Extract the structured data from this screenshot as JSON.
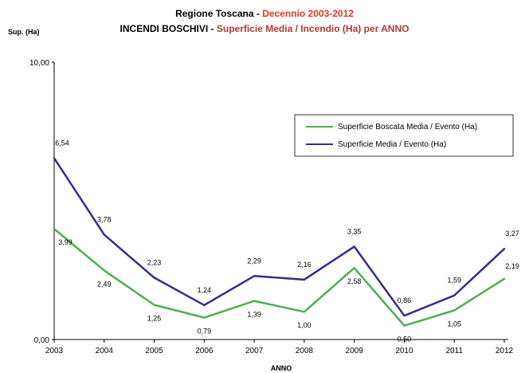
{
  "chart_data": {
    "type": "line",
    "title_part1": "Regione Toscana - ",
    "title_part1_highlight": "Decennio 2003-2012",
    "title_part2": "INCENDI BOSCHIVI - ",
    "title_part2_highlight": "Superficie Media / Incendio (Ha) per ANNO",
    "ylabel": "Sup. (Ha)",
    "xlabel": "ANNO",
    "ylim": [
      0,
      10
    ],
    "ytick_labels": [
      "0,00",
      "10,00"
    ],
    "x": [
      "2003",
      "2004",
      "2005",
      "2006",
      "2007",
      "2008",
      "2009",
      "2010",
      "2011",
      "2012"
    ],
    "series": [
      {
        "name": "Superficie Boscata Media / Evento (Ha)",
        "color": "#4caf50",
        "values": [
          3.99,
          2.49,
          1.25,
          0.79,
          1.39,
          1.0,
          2.58,
          0.5,
          1.05,
          2.19
        ],
        "labels": [
          "3,99",
          "2,49",
          "1,25",
          "0,79",
          "1,39",
          "1,00",
          "2,58",
          "0,50",
          "1,05",
          "2,19"
        ]
      },
      {
        "name": "Superficie Media / Evento (Ha)",
        "color": "#3b2a8c",
        "values": [
          6.54,
          3.78,
          2.23,
          1.24,
          2.29,
          2.16,
          3.35,
          0.86,
          1.59,
          3.27
        ],
        "labels": [
          "6,54",
          "3,78",
          "2,23",
          "1,24",
          "2,29",
          "2,16",
          "3,35",
          "0,86",
          "1,59",
          "3,27"
        ]
      }
    ],
    "colors": {
      "title_black": "#000000",
      "title_red": "#c0392b"
    },
    "legend_position": "top-right",
    "grid": false
  }
}
